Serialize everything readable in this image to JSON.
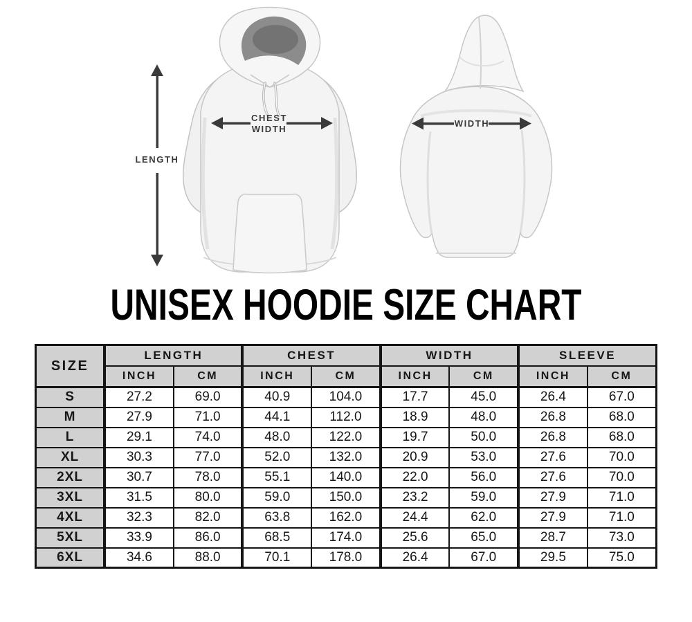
{
  "title": "UNISEX HOODIE SIZE CHART",
  "diagram": {
    "length_label": "LENGTH",
    "chest_width_label_line1": "CHEST",
    "chest_width_label_line2": "WIDTH",
    "back_width_label": "WIDTH"
  },
  "chart_data": {
    "type": "table",
    "title": "UNISEX HOODIE SIZE CHART",
    "corner_header": "SIZE",
    "column_groups": [
      {
        "label": "LENGTH",
        "sub": [
          "INCH",
          "CM"
        ]
      },
      {
        "label": "CHEST",
        "sub": [
          "INCH",
          "CM"
        ]
      },
      {
        "label": "WIDTH",
        "sub": [
          "INCH",
          "CM"
        ]
      },
      {
        "label": "SLEEVE",
        "sub": [
          "INCH",
          "CM"
        ]
      }
    ],
    "rows": [
      {
        "size": "S",
        "values": [
          "27.2",
          "69.0",
          "40.9",
          "104.0",
          "17.7",
          "45.0",
          "26.4",
          "67.0"
        ]
      },
      {
        "size": "M",
        "values": [
          "27.9",
          "71.0",
          "44.1",
          "112.0",
          "18.9",
          "48.0",
          "26.8",
          "68.0"
        ]
      },
      {
        "size": "L",
        "values": [
          "29.1",
          "74.0",
          "48.0",
          "122.0",
          "19.7",
          "50.0",
          "26.8",
          "68.0"
        ]
      },
      {
        "size": "XL",
        "values": [
          "30.3",
          "77.0",
          "52.0",
          "132.0",
          "20.9",
          "53.0",
          "27.6",
          "70.0"
        ]
      },
      {
        "size": "2XL",
        "values": [
          "30.7",
          "78.0",
          "55.1",
          "140.0",
          "22.0",
          "56.0",
          "27.6",
          "70.0"
        ]
      },
      {
        "size": "3XL",
        "values": [
          "31.5",
          "80.0",
          "59.0",
          "150.0",
          "23.2",
          "59.0",
          "27.9",
          "71.0"
        ]
      },
      {
        "size": "4XL",
        "values": [
          "32.3",
          "82.0",
          "63.8",
          "162.0",
          "24.4",
          "62.0",
          "27.9",
          "71.0"
        ]
      },
      {
        "size": "5XL",
        "values": [
          "33.9",
          "86.0",
          "68.5",
          "174.0",
          "25.6",
          "65.0",
          "28.7",
          "73.0"
        ]
      },
      {
        "size": "6XL",
        "values": [
          "34.6",
          "88.0",
          "70.1",
          "178.0",
          "26.4",
          "67.0",
          "29.5",
          "75.0"
        ]
      }
    ]
  },
  "colors": {
    "arrow": "#3a3a3a",
    "table_header_fill": "#d1d1d1",
    "table_border": "#151515",
    "title_text": "#000000",
    "hood_interior": "#8c8c8c"
  }
}
